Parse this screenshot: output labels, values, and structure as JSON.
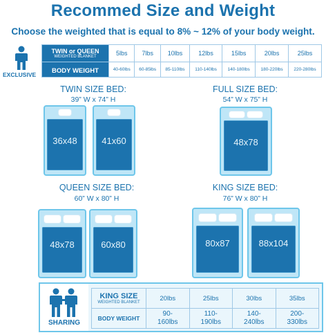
{
  "header": {
    "title": "Recommed Size and Weight",
    "subtitle": "Choose the weighted that is equal to 8% ~ 12% of your body weight."
  },
  "exclusive": {
    "label": "EXCLUSIVE",
    "row1_header_main": "TWIN or QUEEN",
    "row1_header_sub": "WEIGHTED BLANKET",
    "row2_header": "BODY WEIGHT",
    "weights": [
      "5lbs",
      "7lbs",
      "10lbs",
      "12lbs",
      "15lbs",
      "20lbs",
      "25lbs"
    ],
    "body_weights": [
      "40-60lbs",
      "60-85lbs",
      "85-110lbs",
      "110-140lbs",
      "140-180lbs",
      "180-220lbs",
      "220-280lbs"
    ]
  },
  "beds": {
    "twin": {
      "label": "TWIN SIZE BED:",
      "dims": "39” W x 74” H",
      "sizes": [
        "36x48",
        "41x60"
      ]
    },
    "full": {
      "label": "FULL SIZE BED:",
      "dims": "54” W x 75” H",
      "sizes": [
        "48x78"
      ]
    },
    "queen": {
      "label": "QUEEN SIZE BED:",
      "dims": "60” W x 80” H",
      "sizes": [
        "48x78",
        "60x80"
      ]
    },
    "king": {
      "label": "KING SIZE BED:",
      "dims": "76” W x 80” H",
      "sizes": [
        "80x87",
        "88x104"
      ]
    }
  },
  "sharing": {
    "label": "SHARING",
    "row1_header_main": "KING SIZE",
    "row1_header_sub": "WEIGHTED BLANKET",
    "row2_header": "BODY WEIGHT",
    "weights": [
      "20lbs",
      "25lbs",
      "30lbs",
      "35lbs"
    ],
    "body_weights": [
      {
        "line1": "90-",
        "line2": "160lbs"
      },
      {
        "line1": "110-",
        "line2": "190lbs"
      },
      {
        "line1": "140-",
        "line2": "240lbs"
      },
      {
        "line1": "200-",
        "line2": "330lbs"
      }
    ]
  },
  "colors": {
    "primary": "#1c73ae",
    "bed_frame": "#6ec6ea",
    "bed_fill": "#bfe6f7"
  }
}
